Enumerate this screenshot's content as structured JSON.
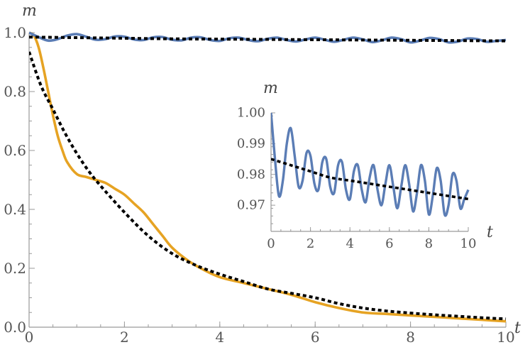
{
  "chart_data": [
    {
      "type": "line",
      "xlabel": "t",
      "ylabel": "m",
      "xlim": [
        0,
        10
      ],
      "ylim": [
        0,
        1.0
      ],
      "x_ticks": [
        "0",
        "2",
        "4",
        "6",
        "8",
        "10"
      ],
      "y_ticks": [
        "0.0",
        "0.2",
        "0.4",
        "0.6",
        "0.8",
        "1.0"
      ],
      "series": [
        {
          "color": "#E6A323",
          "style": "solid",
          "x": [
            0,
            0.1,
            0.2,
            0.3,
            0.4,
            0.5,
            0.6,
            0.7,
            0.8,
            1.0,
            1.2,
            1.4,
            1.6,
            1.8,
            2.0,
            2.2,
            2.4,
            2.6,
            2.8,
            3.0,
            3.3,
            3.6,
            4.0,
            4.5,
            5.0,
            5.5,
            6.0,
            6.5,
            7.0,
            7.5,
            8.0,
            8.5,
            9.0,
            9.5,
            10.0
          ],
          "y": [
            1.0,
            0.99,
            0.95,
            0.88,
            0.8,
            0.72,
            0.65,
            0.6,
            0.56,
            0.52,
            0.51,
            0.5,
            0.49,
            0.47,
            0.45,
            0.42,
            0.39,
            0.35,
            0.31,
            0.27,
            0.23,
            0.2,
            0.17,
            0.15,
            0.13,
            0.11,
            0.085,
            0.065,
            0.05,
            0.045,
            0.04,
            0.035,
            0.03,
            0.025,
            0.02
          ]
        },
        {
          "color": "#000000",
          "style": "dotted",
          "x": [
            0,
            0.25,
            0.5,
            0.75,
            1.0,
            1.25,
            1.5,
            2.0,
            2.5,
            3.0,
            3.5,
            4.0,
            4.5,
            5.0,
            5.5,
            6.0,
            6.5,
            7.0,
            7.5,
            8.0,
            8.5,
            9.0,
            9.5,
            10.0
          ],
          "y": [
            0.935,
            0.82,
            0.74,
            0.66,
            0.59,
            0.53,
            0.48,
            0.39,
            0.31,
            0.25,
            0.21,
            0.18,
            0.155,
            0.13,
            0.115,
            0.1,
            0.08,
            0.065,
            0.055,
            0.048,
            0.042,
            0.037,
            0.032,
            0.028
          ]
        },
        {
          "color": "#5B7DB5",
          "style": "solid",
          "x": [
            0,
            0.2,
            0.4,
            0.6,
            0.8,
            1.0,
            1.2,
            1.4,
            1.6,
            1.8,
            2.0,
            2.2,
            2.4,
            2.6,
            2.8,
            3.0,
            3.2,
            3.4,
            3.6,
            3.8,
            4.0,
            4.2,
            4.4,
            4.6,
            4.8,
            5.0,
            5.2,
            5.4,
            5.6,
            5.8,
            6.0,
            6.2,
            6.4,
            6.6,
            6.8,
            7.0,
            7.2,
            7.4,
            7.6,
            7.8,
            8.0,
            8.2,
            8.4,
            8.6,
            8.8,
            9.0,
            9.2,
            9.4,
            9.6,
            9.8,
            10.0
          ],
          "y": [
            1.0,
            0.985,
            0.973,
            0.978,
            0.99,
            0.995,
            0.986,
            0.976,
            0.978,
            0.987,
            0.986,
            0.977,
            0.975,
            0.984,
            0.985,
            0.976,
            0.974,
            0.983,
            0.984,
            0.975,
            0.972,
            0.981,
            0.983,
            0.975,
            0.971,
            0.979,
            0.983,
            0.975,
            0.97,
            0.977,
            0.983,
            0.976,
            0.969,
            0.976,
            0.983,
            0.977,
            0.968,
            0.974,
            0.983,
            0.978,
            0.967,
            0.973,
            0.982,
            0.978,
            0.967,
            0.97,
            0.98,
            0.978,
            0.969,
            0.972,
            0.975
          ]
        },
        {
          "color": "#000000",
          "style": "dotted",
          "x": [
            0,
            1,
            2,
            3,
            4,
            5,
            6,
            7,
            8,
            9,
            10
          ],
          "y": [
            0.985,
            0.983,
            0.981,
            0.979,
            0.978,
            0.977,
            0.976,
            0.975,
            0.974,
            0.973,
            0.972
          ]
        }
      ]
    },
    {
      "type": "line",
      "placement": "inset",
      "xlabel": "t",
      "ylabel": "m",
      "xlim": [
        0,
        10
      ],
      "ylim": [
        0.9615,
        1.0
      ],
      "x_ticks": [
        "0",
        "2",
        "4",
        "6",
        "8",
        "10"
      ],
      "y_ticks": [
        "0.97",
        "0.98",
        "0.99",
        "1.00"
      ],
      "series": [
        {
          "color": "#5B7DB5",
          "style": "solid",
          "x": [
            0,
            0.2,
            0.4,
            0.6,
            0.8,
            1.0,
            1.2,
            1.4,
            1.6,
            1.8,
            2.0,
            2.2,
            2.4,
            2.6,
            2.8,
            3.0,
            3.2,
            3.4,
            3.6,
            3.8,
            4.0,
            4.2,
            4.4,
            4.6,
            4.8,
            5.0,
            5.2,
            5.4,
            5.6,
            5.8,
            6.0,
            6.2,
            6.4,
            6.6,
            6.8,
            7.0,
            7.2,
            7.4,
            7.6,
            7.8,
            8.0,
            8.2,
            8.4,
            8.6,
            8.8,
            9.0,
            9.2,
            9.4,
            9.6,
            9.8,
            10.0
          ],
          "y": [
            1.0,
            0.985,
            0.973,
            0.978,
            0.99,
            0.995,
            0.986,
            0.976,
            0.978,
            0.987,
            0.986,
            0.977,
            0.975,
            0.984,
            0.985,
            0.976,
            0.974,
            0.983,
            0.984,
            0.975,
            0.972,
            0.981,
            0.983,
            0.975,
            0.971,
            0.979,
            0.983,
            0.975,
            0.97,
            0.977,
            0.983,
            0.976,
            0.969,
            0.976,
            0.983,
            0.977,
            0.968,
            0.974,
            0.983,
            0.978,
            0.967,
            0.973,
            0.982,
            0.978,
            0.967,
            0.97,
            0.98,
            0.978,
            0.969,
            0.972,
            0.975
          ]
        },
        {
          "color": "#000000",
          "style": "dotted",
          "x": [
            0,
            1,
            2,
            3,
            4,
            5,
            6,
            7,
            8,
            9,
            10
          ],
          "y": [
            0.985,
            0.983,
            0.981,
            0.979,
            0.978,
            0.977,
            0.976,
            0.975,
            0.974,
            0.973,
            0.972
          ]
        }
      ]
    }
  ]
}
